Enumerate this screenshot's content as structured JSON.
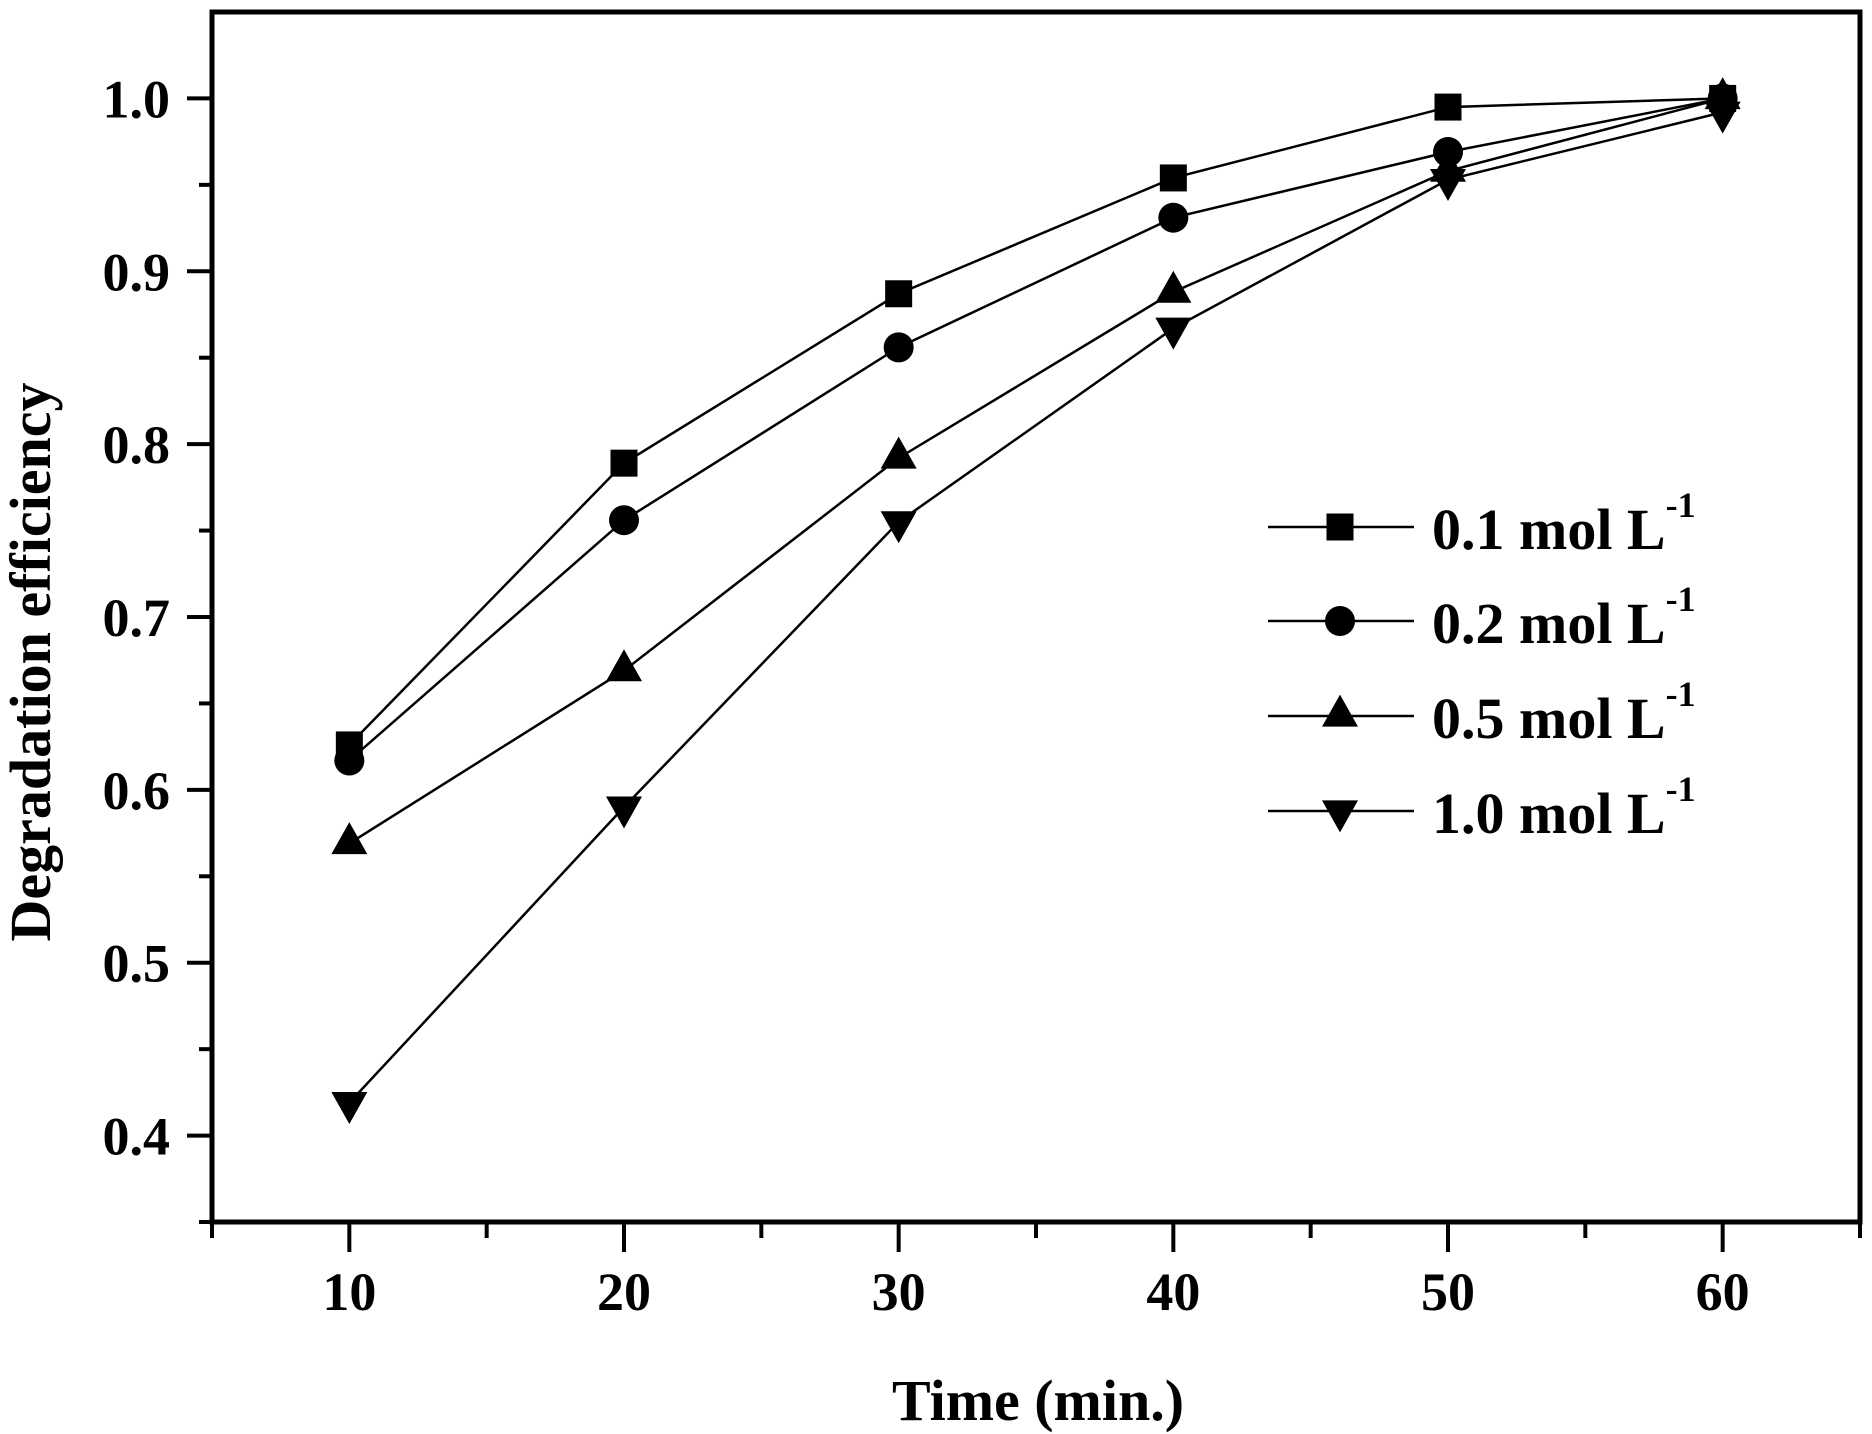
{
  "chart_data": {
    "type": "line",
    "title": "",
    "xlabel": "Time (min.)",
    "ylabel": "Degradation efficiency",
    "xlim": [
      5,
      65
    ],
    "ylim": [
      0.35,
      1.05
    ],
    "x": [
      10,
      20,
      30,
      40,
      50,
      60
    ],
    "x_ticks": [
      10,
      20,
      30,
      40,
      50,
      60
    ],
    "x_tick_labels": [
      "10",
      "20",
      "30",
      "40",
      "50",
      "60"
    ],
    "x_minor_ticks": [
      5,
      15,
      25,
      35,
      45,
      55,
      65
    ],
    "y_ticks": [
      0.4,
      0.5,
      0.6,
      0.7,
      0.8,
      0.9,
      1.0
    ],
    "y_tick_labels": [
      "0.4",
      "0.5",
      "0.6",
      "0.7",
      "0.8",
      "0.9",
      "1.0"
    ],
    "y_minor_ticks": [
      0.35,
      0.45,
      0.55,
      0.65,
      0.75,
      0.85,
      0.95
    ],
    "grid": false,
    "legend_position": "center-right",
    "series": [
      {
        "name": "0.1 mol L-1",
        "label_main": "0.1 mol L",
        "label_sup": "-1",
        "marker": "square",
        "values": [
          0.626,
          0.789,
          0.887,
          0.954,
          0.995,
          1.0
        ]
      },
      {
        "name": "0.2 mol L-1",
        "label_main": "0.2 mol L",
        "label_sup": "-1",
        "marker": "circle",
        "values": [
          0.617,
          0.756,
          0.856,
          0.931,
          0.969,
          1.0
        ]
      },
      {
        "name": "0.5 mol L-1",
        "label_main": "0.5 mol L",
        "label_sup": "-1",
        "marker": "triangle-up",
        "values": [
          0.569,
          0.669,
          0.792,
          0.888,
          0.958,
          1.0
        ]
      },
      {
        "name": "1.0 mol L-1",
        "label_main": "1.0 mol L",
        "label_sup": "-1",
        "marker": "triangle-down",
        "values": [
          0.419,
          0.59,
          0.755,
          0.867,
          0.953,
          0.992
        ]
      }
    ],
    "colors": {
      "line": "#000000",
      "marker": "#000000",
      "background": "#ffffff"
    }
  }
}
